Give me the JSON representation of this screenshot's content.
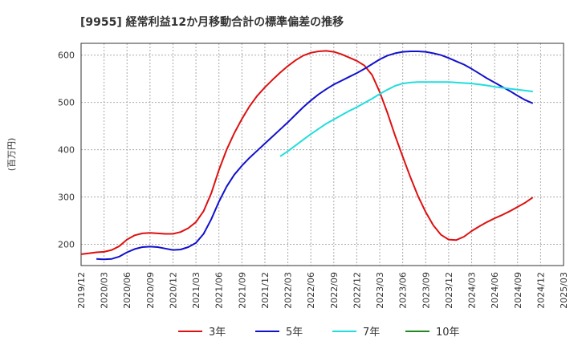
{
  "chart_data": {
    "type": "line",
    "title": "[9955]  経常利益12か月移動合計の標準偏差の推移",
    "ylabel": "(百万円)",
    "xlabel": "",
    "ylim": [
      155,
      625
    ],
    "yticks": [
      200,
      300,
      400,
      500,
      600
    ],
    "xticks": [
      "2019/12",
      "2020/03",
      "2020/06",
      "2020/09",
      "2020/12",
      "2021/03",
      "2021/06",
      "2021/09",
      "2021/12",
      "2022/03",
      "2022/06",
      "2022/09",
      "2022/12",
      "2023/03",
      "2023/06",
      "2023/09",
      "2023/12",
      "2024/03",
      "2024/06",
      "2024/09",
      "2024/12",
      "2025/03"
    ],
    "grid": true,
    "legend_position": "bottom",
    "series": [
      {
        "name": "3年",
        "color": "#dd1111",
        "points": [
          [
            "2019/12",
            179
          ],
          [
            "2020/01",
            181
          ],
          [
            "2020/02",
            183
          ],
          [
            "2020/03",
            184
          ],
          [
            "2020/04",
            188
          ],
          [
            "2020/05",
            196
          ],
          [
            "2020/06",
            210
          ],
          [
            "2020/07",
            219
          ],
          [
            "2020/08",
            223
          ],
          [
            "2020/09",
            224
          ],
          [
            "2020/10",
            223
          ],
          [
            "2020/11",
            222
          ],
          [
            "2020/12",
            222
          ],
          [
            "2021/01",
            226
          ],
          [
            "2021/02",
            234
          ],
          [
            "2021/03",
            247
          ],
          [
            "2021/04",
            270
          ],
          [
            "2021/05",
            308
          ],
          [
            "2021/06",
            357
          ],
          [
            "2021/07",
            400
          ],
          [
            "2021/08",
            435
          ],
          [
            "2021/09",
            465
          ],
          [
            "2021/10",
            492
          ],
          [
            "2021/11",
            514
          ],
          [
            "2021/12",
            532
          ],
          [
            "2022/01",
            548
          ],
          [
            "2022/02",
            563
          ],
          [
            "2022/03",
            577
          ],
          [
            "2022/04",
            589
          ],
          [
            "2022/05",
            599
          ],
          [
            "2022/06",
            605
          ],
          [
            "2022/07",
            608
          ],
          [
            "2022/08",
            609
          ],
          [
            "2022/09",
            607
          ],
          [
            "2022/10",
            602
          ],
          [
            "2022/11",
            595
          ],
          [
            "2022/12",
            588
          ],
          [
            "2023/01",
            578
          ],
          [
            "2023/02",
            558
          ],
          [
            "2023/03",
            522
          ],
          [
            "2023/04",
            478
          ],
          [
            "2023/05",
            430
          ],
          [
            "2023/06",
            385
          ],
          [
            "2023/07",
            342
          ],
          [
            "2023/08",
            302
          ],
          [
            "2023/09",
            268
          ],
          [
            "2023/10",
            240
          ],
          [
            "2023/11",
            220
          ],
          [
            "2023/12",
            210
          ],
          [
            "2024/01",
            209
          ],
          [
            "2024/02",
            216
          ],
          [
            "2024/03",
            228
          ],
          [
            "2024/04",
            238
          ],
          [
            "2024/05",
            247
          ],
          [
            "2024/06",
            255
          ],
          [
            "2024/07",
            262
          ],
          [
            "2024/08",
            270
          ],
          [
            "2024/09",
            279
          ],
          [
            "2024/10",
            288
          ],
          [
            "2024/11",
            299
          ]
        ]
      },
      {
        "name": "5年",
        "color": "#1111cc",
        "points": [
          [
            "2020/02",
            169
          ],
          [
            "2020/03",
            168
          ],
          [
            "2020/04",
            169
          ],
          [
            "2020/05",
            174
          ],
          [
            "2020/06",
            183
          ],
          [
            "2020/07",
            190
          ],
          [
            "2020/08",
            194
          ],
          [
            "2020/09",
            195
          ],
          [
            "2020/10",
            194
          ],
          [
            "2020/11",
            191
          ],
          [
            "2020/12",
            188
          ],
          [
            "2021/01",
            189
          ],
          [
            "2021/02",
            194
          ],
          [
            "2021/03",
            203
          ],
          [
            "2021/04",
            222
          ],
          [
            "2021/05",
            253
          ],
          [
            "2021/06",
            290
          ],
          [
            "2021/07",
            322
          ],
          [
            "2021/08",
            347
          ],
          [
            "2021/09",
            366
          ],
          [
            "2021/10",
            383
          ],
          [
            "2021/11",
            398
          ],
          [
            "2021/12",
            413
          ],
          [
            "2022/01",
            428
          ],
          [
            "2022/02",
            443
          ],
          [
            "2022/03",
            458
          ],
          [
            "2022/04",
            474
          ],
          [
            "2022/05",
            490
          ],
          [
            "2022/06",
            504
          ],
          [
            "2022/07",
            517
          ],
          [
            "2022/08",
            528
          ],
          [
            "2022/09",
            538
          ],
          [
            "2022/10",
            546
          ],
          [
            "2022/11",
            554
          ],
          [
            "2022/12",
            562
          ],
          [
            "2023/01",
            571
          ],
          [
            "2023/02",
            581
          ],
          [
            "2023/03",
            591
          ],
          [
            "2023/04",
            599
          ],
          [
            "2023/05",
            604
          ],
          [
            "2023/06",
            607
          ],
          [
            "2023/07",
            608
          ],
          [
            "2023/08",
            608
          ],
          [
            "2023/09",
            607
          ],
          [
            "2023/10",
            604
          ],
          [
            "2023/11",
            600
          ],
          [
            "2023/12",
            594
          ],
          [
            "2024/01",
            587
          ],
          [
            "2024/02",
            580
          ],
          [
            "2024/03",
            571
          ],
          [
            "2024/04",
            561
          ],
          [
            "2024/05",
            551
          ],
          [
            "2024/06",
            542
          ],
          [
            "2024/07",
            533
          ],
          [
            "2024/08",
            524
          ],
          [
            "2024/09",
            514
          ],
          [
            "2024/10",
            505
          ],
          [
            "2024/11",
            498
          ]
        ]
      },
      {
        "name": "7年",
        "color": "#22dddd",
        "points": [
          [
            "2022/02",
            386
          ],
          [
            "2022/03",
            397
          ],
          [
            "2022/04",
            409
          ],
          [
            "2022/05",
            421
          ],
          [
            "2022/06",
            433
          ],
          [
            "2022/07",
            444
          ],
          [
            "2022/08",
            455
          ],
          [
            "2022/09",
            464
          ],
          [
            "2022/10",
            473
          ],
          [
            "2022/11",
            482
          ],
          [
            "2022/12",
            490
          ],
          [
            "2023/01",
            499
          ],
          [
            "2023/02",
            508
          ],
          [
            "2023/03",
            518
          ],
          [
            "2023/04",
            527
          ],
          [
            "2023/05",
            535
          ],
          [
            "2023/06",
            540
          ],
          [
            "2023/07",
            542
          ],
          [
            "2023/08",
            543
          ],
          [
            "2023/09",
            543
          ],
          [
            "2023/10",
            543
          ],
          [
            "2023/11",
            543
          ],
          [
            "2023/12",
            543
          ],
          [
            "2024/01",
            542
          ],
          [
            "2024/02",
            541
          ],
          [
            "2024/03",
            540
          ],
          [
            "2024/04",
            538
          ],
          [
            "2024/05",
            536
          ],
          [
            "2024/06",
            533
          ],
          [
            "2024/07",
            531
          ],
          [
            "2024/08",
            529
          ],
          [
            "2024/09",
            527
          ],
          [
            "2024/10",
            525
          ],
          [
            "2024/11",
            523
          ]
        ]
      },
      {
        "name": "10年",
        "color": "#228822",
        "points": []
      }
    ]
  }
}
